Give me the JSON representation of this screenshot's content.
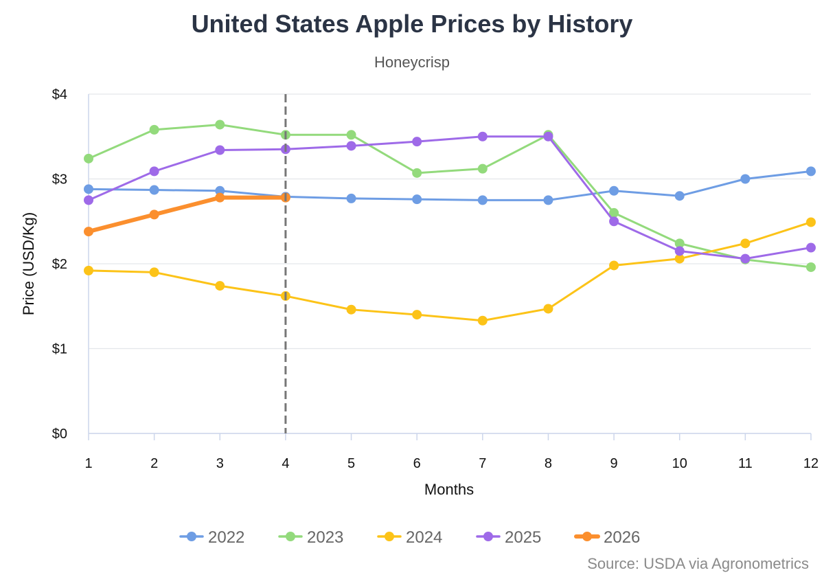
{
  "chart_data": {
    "type": "line",
    "title": "United States Apple Prices by History",
    "subtitle": "Honeycrisp",
    "source": "Source: USDA via Agronometrics",
    "xlabel": "Months",
    "ylabel": "Price (USD/Kg)",
    "x": [
      1,
      2,
      3,
      4,
      5,
      6,
      7,
      8,
      9,
      10,
      11,
      12
    ],
    "xlim": [
      1,
      12
    ],
    "ylim": [
      0,
      4
    ],
    "yticks": [
      0,
      1,
      2,
      3,
      4
    ],
    "ytick_labels": [
      "$0",
      "$1",
      "$2",
      "$3",
      "$4"
    ],
    "grid": "horizontal",
    "legend_position": "bottom",
    "current_month_marker": 4,
    "series": [
      {
        "name": "2022",
        "color": "#6e9de4",
        "values": [
          2.88,
          2.87,
          2.86,
          2.79,
          2.77,
          2.76,
          2.75,
          2.75,
          2.86,
          2.8,
          3.0,
          3.09
        ]
      },
      {
        "name": "2023",
        "color": "#93da7c",
        "values": [
          3.24,
          3.58,
          3.64,
          3.52,
          3.52,
          3.07,
          3.12,
          3.52,
          2.6,
          2.24,
          2.05,
          1.96
        ]
      },
      {
        "name": "2024",
        "color": "#fcc318",
        "values": [
          1.92,
          1.9,
          1.74,
          1.62,
          1.46,
          1.4,
          1.33,
          1.47,
          1.98,
          2.06,
          2.24,
          2.49
        ]
      },
      {
        "name": "2025",
        "color": "#9e6ae8",
        "values": [
          2.75,
          3.09,
          3.34,
          3.35,
          3.39,
          3.44,
          3.5,
          3.5,
          2.5,
          2.15,
          2.06,
          2.19
        ]
      },
      {
        "name": "2026",
        "color": "#fb8f2e",
        "values": [
          2.38,
          2.58,
          2.78,
          2.78,
          null,
          null,
          null,
          null,
          null,
          null,
          null,
          null
        ],
        "emphasis": true
      }
    ]
  }
}
